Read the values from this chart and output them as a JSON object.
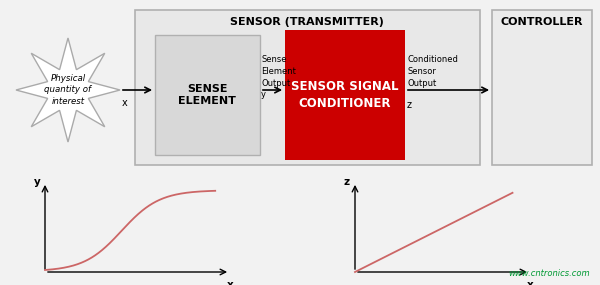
{
  "bg_color": "#f2f2f2",
  "title_sensor": "SENSOR (TRANSMITTER)",
  "title_controller": "CONTROLLER",
  "sense_element_label": "SENSE\nELEMENT",
  "conditioner_label": "SENSOR SIGNAL\nCONDITIONER",
  "sense_output_label": "Sense\nElement\nOutput\ny",
  "conditioned_output_label": "Conditioned\nSensor\nOutput",
  "conditioned_z_label": "z",
  "physical_label": "Physical\nquantity of\ninterest",
  "x_label": "x",
  "website": "www.cntronics.com",
  "conditioner_color": "#cc0000",
  "conditioner_text_color": "#ffffff",
  "website_color": "#009933"
}
